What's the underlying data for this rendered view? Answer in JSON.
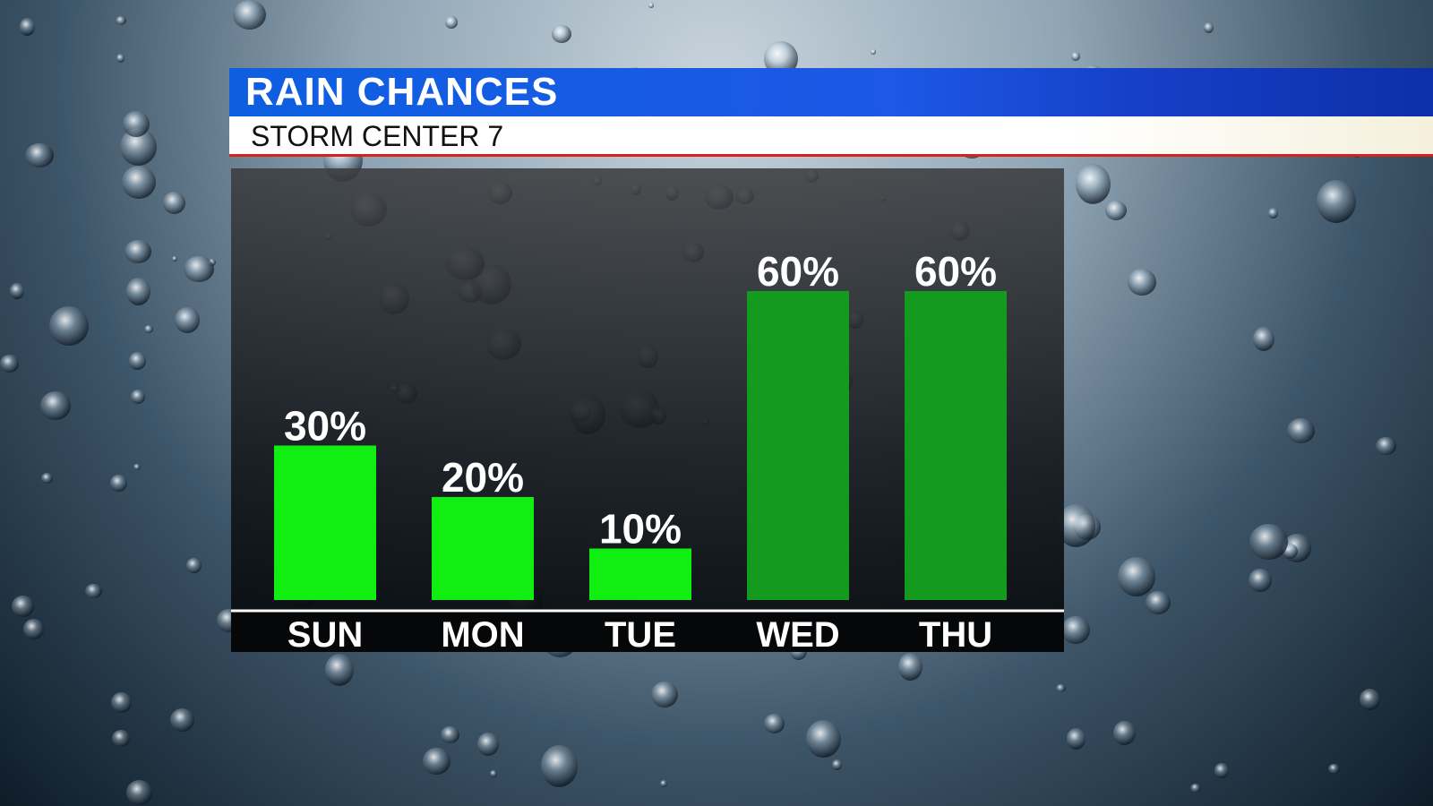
{
  "header": {
    "title": "RAIN CHANCES",
    "subtitle": "STORM CENTER 7",
    "accent": "#1d58e6",
    "rule_color": "#d4221e"
  },
  "colors": {
    "bright_green": "#11ee11",
    "dark_green": "#149a1e"
  },
  "chart_data": {
    "type": "bar",
    "categories": [
      "SUN",
      "MON",
      "TUE",
      "WED",
      "THU"
    ],
    "values": [
      30,
      20,
      10,
      60,
      60
    ],
    "value_labels": [
      "30%",
      "20%",
      "10%",
      "60%",
      "60%"
    ],
    "bar_colors": [
      "#11ee11",
      "#11ee11",
      "#11ee11",
      "#149a1e",
      "#149a1e"
    ],
    "ylim": [
      0,
      60
    ],
    "grid": false,
    "title": "",
    "xlabel": "",
    "ylabel": ""
  }
}
